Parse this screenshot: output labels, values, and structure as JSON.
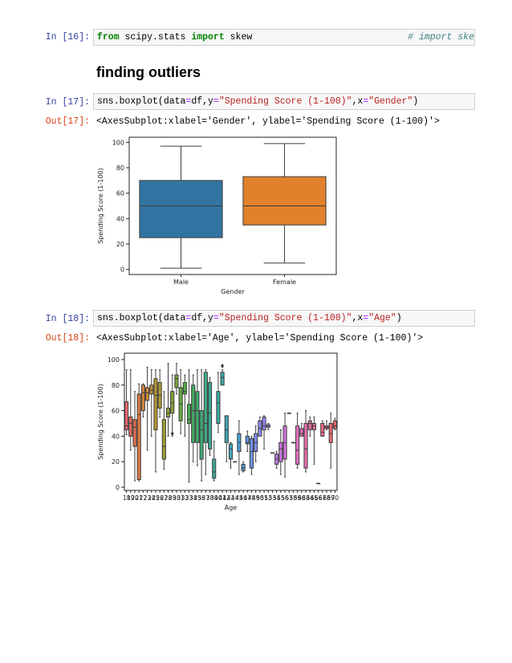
{
  "cells": [
    {
      "prompt": "In [16]:",
      "code": [
        "from",
        " scipy.stats ",
        "import",
        " skew"
      ],
      "comment": "# import ske"
    },
    {
      "heading": "finding outliers"
    },
    {
      "prompt": "In [17]:",
      "code": [
        "sns.boxplot(data",
        "=",
        "df,y",
        "=",
        "\"Spending Score (1-100)\"",
        ",x",
        "=",
        "\"Gender\"",
        ")"
      ],
      "out_prompt": "Out[17]:",
      "output": "<AxesSubplot:xlabel='Gender', ylabel='Spending Score (1-100)'>"
    },
    {
      "prompt": "In [18]:",
      "code": [
        "sns.boxplot(data",
        "=",
        "df,y",
        "=",
        "\"Spending Score (1-100)\"",
        ",x",
        "=",
        "\"Age\"",
        ")"
      ],
      "out_prompt": "Out[18]:",
      "output": "<AxesSubplot:xlabel='Age', ylabel='Spending Score (1-100)'>"
    }
  ],
  "chart_data": [
    {
      "type": "box",
      "xlabel": "Gender",
      "ylabel": "Spending Score (1-100)",
      "categories": [
        "Male",
        "Female"
      ],
      "whislo": [
        1,
        5
      ],
      "q1": [
        25,
        35
      ],
      "median": [
        50,
        50
      ],
      "q3": [
        70,
        73
      ],
      "whishi": [
        97,
        99
      ],
      "colors": [
        "#3274a1",
        "#e1812c"
      ],
      "ylim": [
        -4,
        104
      ],
      "yticks": [
        0,
        20,
        40,
        60,
        80,
        100
      ]
    },
    {
      "type": "box",
      "xlabel": "Age",
      "ylabel": "Spending Score (1-100)",
      "categories": [
        18,
        19,
        20,
        21,
        22,
        23,
        24,
        25,
        26,
        27,
        28,
        29,
        30,
        31,
        32,
        33,
        34,
        35,
        36,
        37,
        38,
        39,
        40,
        41,
        42,
        43,
        44,
        45,
        46,
        47,
        48,
        49,
        50,
        51,
        52,
        53,
        54,
        55,
        56,
        57,
        58,
        59,
        60,
        63,
        64,
        65,
        66,
        67,
        68,
        69,
        70
      ],
      "whislo": [
        41,
        29,
        5,
        5,
        55,
        29,
        40,
        12,
        55,
        14,
        40,
        40,
        73,
        42,
        40,
        4,
        20,
        17,
        5,
        10,
        25,
        5,
        43,
        80,
        20,
        15,
        20,
        10,
        12,
        28,
        10,
        20,
        40,
        30,
        45,
        27,
        15,
        10,
        8,
        58,
        35,
        15,
        40,
        12,
        40,
        18,
        3,
        40,
        45,
        15,
        45
      ],
      "q1": [
        45,
        40,
        32,
        6,
        60,
        68,
        73,
        45,
        62,
        22,
        55,
        58,
        78,
        52,
        73,
        50,
        35,
        35,
        22,
        35,
        30,
        7,
        50,
        80,
        35,
        22,
        20,
        28,
        13,
        34,
        15,
        28,
        40,
        45,
        47,
        27,
        18,
        20,
        22,
        58,
        35,
        18,
        40,
        15,
        45,
        45,
        3,
        40,
        46,
        35,
        46
      ],
      "median": [
        48,
        50,
        47,
        57,
        74,
        74,
        76,
        72,
        72,
        32,
        58,
        66,
        85,
        65,
        75,
        53,
        60,
        60,
        45,
        50,
        58,
        12,
        66,
        86,
        45,
        30,
        20,
        35,
        15,
        35,
        28,
        35,
        46,
        48,
        48,
        27,
        22,
        30,
        35,
        58,
        35,
        29,
        42,
        30,
        50,
        48,
        3,
        43,
        47,
        42,
        48
      ],
      "q3": [
        67,
        55,
        53,
        73,
        80,
        78,
        80,
        85,
        82,
        53,
        62,
        75,
        88,
        78,
        82,
        65,
        80,
        75,
        60,
        90,
        82,
        22,
        75,
        90,
        56,
        34,
        20,
        42,
        18,
        40,
        38,
        42,
        52,
        55,
        49,
        27,
        26,
        35,
        48,
        58,
        35,
        48,
        46,
        50,
        52,
        50,
        3,
        50,
        48,
        50,
        52
      ],
      "whishi": [
        92,
        92,
        75,
        81,
        81,
        94,
        92,
        92,
        92,
        75,
        97,
        88,
        97,
        92,
        88,
        92,
        88,
        92,
        92,
        92,
        86,
        36,
        90,
        92,
        56,
        35,
        20,
        52,
        20,
        44,
        40,
        48,
        55,
        56,
        50,
        27,
        28,
        45,
        58,
        58,
        35,
        58,
        50,
        60,
        55,
        55,
        3,
        52,
        52,
        58,
        54
      ],
      "fliers": [
        [],
        [],
        [],
        [],
        [],
        [],
        [],
        [],
        [],
        [],
        [],
        [
          42
        ],
        [],
        [],
        [],
        [],
        [],
        [],
        [],
        [],
        [],
        [],
        [],
        [
          95
        ],
        [],
        [],
        [],
        [],
        [],
        [],
        [],
        [],
        [],
        [],
        [],
        [],
        [],
        [],
        [],
        [],
        [],
        [],
        [],
        [],
        [],
        [],
        [],
        [],
        [],
        [],
        []
      ],
      "colors": [
        "#e8676f",
        "#e56a5e",
        "#e07050",
        "#d97a45",
        "#d1833c",
        "#c88a36",
        "#bf9035",
        "#b59535",
        "#aa9a36",
        "#9f9e37",
        "#939f38",
        "#86a23a",
        "#77a53c",
        "#67a83f",
        "#55ab45",
        "#4aac55",
        "#45ac64",
        "#42ac70",
        "#40ab7b",
        "#3fab85",
        "#3eaa8e",
        "#3ea997",
        "#3ea8a0",
        "#3fa7a9",
        "#40a6b2",
        "#42a4bc",
        "#45a2c6",
        "#499fd1",
        "#509bdc",
        "#5c97e6",
        "#6c92ec",
        "#7d8df0",
        "#8d88f2",
        "#9b84f2",
        "#a880f0",
        "#b47ded",
        "#bf7ae9",
        "#c977e3",
        "#d274dc",
        "#d972d4",
        "#df70cb",
        "#e36fc1",
        "#e66eb7",
        "#e86dac",
        "#e96ca2",
        "#e96b97",
        "#e96a8d",
        "#e96983",
        "#e8687a",
        "#e76774",
        "#e6666f"
      ],
      "ylim": [
        -2.5,
        105
      ],
      "yticks": [
        0,
        20,
        40,
        60,
        80,
        100
      ]
    }
  ]
}
